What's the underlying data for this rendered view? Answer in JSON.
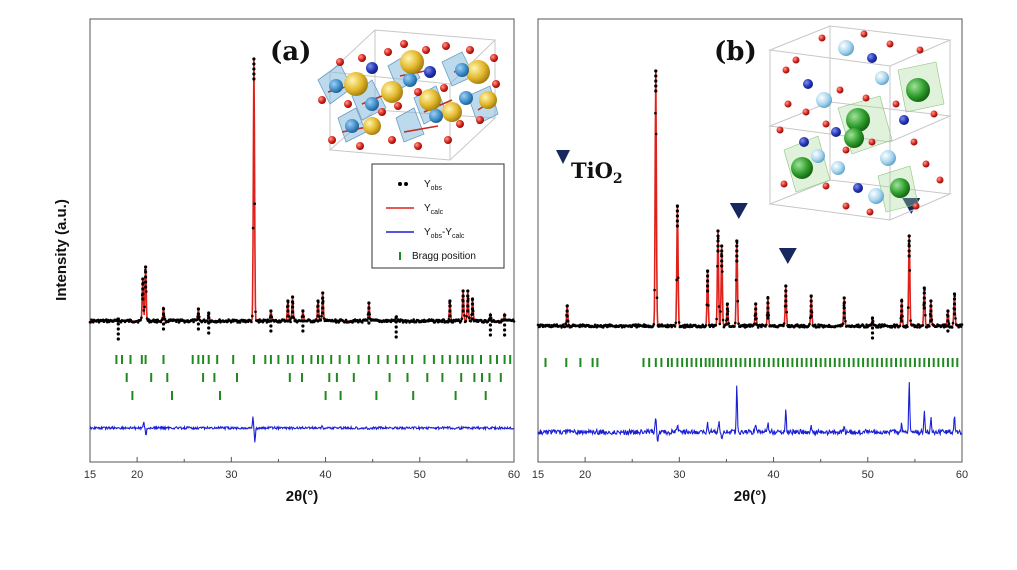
{
  "colors": {
    "observed": "#000000",
    "calculated": "#e0211b",
    "difference": "#1a1fd6",
    "bragg": "#1f8a1f",
    "marker": "#16285e",
    "axis": "#555555"
  },
  "figure": {
    "ylabel": "Intensity (a.u.)",
    "xlabel": "2θ(°)"
  },
  "legend": {
    "entries": [
      {
        "symbol": "dot",
        "label": "Y",
        "sub": "obs"
      },
      {
        "symbol": "line-red",
        "label": "Y",
        "sub": "calc"
      },
      {
        "symbol": "line-blue",
        "label": "Y",
        "sub": "obs",
        "label2": "-Y",
        "sub2": "calc"
      },
      {
        "symbol": "bar-green",
        "label": "Bragg position"
      }
    ]
  },
  "panels": [
    {
      "label": "(a)",
      "xlabel": "2θ(°)"
    },
    {
      "label": "(b)",
      "xlabel": "2θ(°)",
      "annotation": "TiO",
      "annotation_sub": "2"
    }
  ],
  "chart_data": [
    {
      "type": "line",
      "panel": "(a)",
      "xlim": [
        15,
        60
      ],
      "xticks": [
        20,
        30,
        40,
        50,
        60
      ],
      "xlabel": "2θ(°)",
      "ylabel": "Intensity (a.u.)",
      "baseline": 12,
      "peaks": [
        {
          "x": 18.0,
          "y": 2
        },
        {
          "x": 20.6,
          "y": 42
        },
        {
          "x": 20.9,
          "y": 54
        },
        {
          "x": 22.8,
          "y": 12
        },
        {
          "x": 26.5,
          "y": 12
        },
        {
          "x": 27.6,
          "y": 8
        },
        {
          "x": 32.4,
          "y": 262
        },
        {
          "x": 34.2,
          "y": 10
        },
        {
          "x": 36.0,
          "y": 20
        },
        {
          "x": 36.5,
          "y": 24
        },
        {
          "x": 37.6,
          "y": 10
        },
        {
          "x": 39.2,
          "y": 20
        },
        {
          "x": 39.7,
          "y": 28
        },
        {
          "x": 44.6,
          "y": 18
        },
        {
          "x": 47.5,
          "y": 4
        },
        {
          "x": 53.2,
          "y": 20
        },
        {
          "x": 54.6,
          "y": 30
        },
        {
          "x": 55.1,
          "y": 30
        },
        {
          "x": 55.6,
          "y": 22
        },
        {
          "x": 57.5,
          "y": 6
        },
        {
          "x": 59.0,
          "y": 6
        }
      ],
      "bragg_positions": [
        [
          17.8,
          18.4,
          19.3,
          20.5,
          20.9,
          22.8,
          25.9,
          26.5,
          27.0,
          27.6,
          28.5,
          30.2,
          32.4,
          33.6,
          34.2,
          35.0,
          36.0,
          36.5,
          37.6,
          38.5,
          39.2,
          39.7,
          40.6,
          41.5,
          42.5,
          43.5,
          44.6,
          45.6,
          46.6,
          47.5,
          48.3,
          49.2,
          50.5,
          51.5,
          52.4,
          53.2,
          54.0,
          54.6,
          55.1,
          55.6,
          56.5,
          57.5,
          58.2,
          59.0,
          59.6
        ],
        [
          18.9,
          21.5,
          23.2,
          27.0,
          28.2,
          30.6,
          36.2,
          37.5,
          40.4,
          41.2,
          43.0,
          46.8,
          48.7,
          50.8,
          52.4,
          54.4,
          55.8,
          56.6,
          57.4,
          58.6
        ],
        [
          19.5,
          23.7,
          28.8,
          40.0,
          41.6,
          45.4,
          49.3,
          53.8,
          57.0
        ]
      ],
      "difference_spikes": [
        {
          "x": 20.7,
          "y": 12
        },
        {
          "x": 20.95,
          "y": -14
        },
        {
          "x": 32.3,
          "y": 20
        },
        {
          "x": 32.5,
          "y": -26
        },
        {
          "x": 39.6,
          "y": 4
        },
        {
          "x": 44.6,
          "y": -3
        }
      ]
    },
    {
      "type": "line",
      "panel": "(b)",
      "xlim": [
        15,
        60
      ],
      "xticks": [
        20,
        30,
        40,
        50,
        60
      ],
      "xlabel": "2θ(°)",
      "baseline": 8,
      "peaks": [
        {
          "x": 18.1,
          "y": 20
        },
        {
          "x": 27.5,
          "y": 255
        },
        {
          "x": 29.8,
          "y": 120
        },
        {
          "x": 33.0,
          "y": 55
        },
        {
          "x": 34.1,
          "y": 95
        },
        {
          "x": 34.5,
          "y": 80
        },
        {
          "x": 35.1,
          "y": 22
        },
        {
          "x": 36.1,
          "y": 85
        },
        {
          "x": 38.1,
          "y": 22
        },
        {
          "x": 39.4,
          "y": 28
        },
        {
          "x": 41.3,
          "y": 40
        },
        {
          "x": 44.0,
          "y": 30
        },
        {
          "x": 47.5,
          "y": 28
        },
        {
          "x": 50.5,
          "y": 8
        },
        {
          "x": 53.6,
          "y": 25
        },
        {
          "x": 54.4,
          "y": 90
        },
        {
          "x": 56.0,
          "y": 38
        },
        {
          "x": 56.7,
          "y": 25
        },
        {
          "x": 58.5,
          "y": 15
        },
        {
          "x": 59.2,
          "y": 32
        }
      ],
      "tio2_markers": [
        36.1,
        41.3,
        54.4
      ],
      "bragg_positions": [
        [
          15.8,
          18.0,
          19.5,
          20.8,
          21.3,
          26.2,
          26.8,
          27.5,
          28.1,
          28.8,
          29.2,
          29.8,
          30.3,
          30.8,
          31.3,
          31.8,
          32.3,
          32.8,
          33.2,
          33.6,
          34.1,
          34.5,
          35.0,
          35.5,
          36.0,
          36.5,
          37.0,
          37.5,
          38.0,
          38.5,
          39.0,
          39.5,
          40.0,
          40.5,
          41.0,
          41.5,
          42.0,
          42.5,
          43.0,
          43.5,
          44.0,
          44.5,
          45.0,
          45.5,
          46.0,
          46.5,
          47.0,
          47.5,
          48.0,
          48.5,
          49.0,
          49.5,
          50.0,
          50.5,
          51.0,
          51.5,
          52.0,
          52.5,
          53.0,
          53.5,
          54.0,
          54.5,
          55.0,
          55.5,
          56.0,
          56.5,
          57.0,
          57.5,
          58.0,
          58.5,
          59.0,
          59.5
        ]
      ],
      "difference_spikes": [
        {
          "x": 27.5,
          "y": 28
        },
        {
          "x": 27.7,
          "y": -16
        },
        {
          "x": 29.8,
          "y": 14
        },
        {
          "x": 33.0,
          "y": 16
        },
        {
          "x": 34.2,
          "y": 20
        },
        {
          "x": 34.5,
          "y": -14
        },
        {
          "x": 36.1,
          "y": 85
        },
        {
          "x": 38.1,
          "y": 12
        },
        {
          "x": 39.4,
          "y": 18
        },
        {
          "x": 41.3,
          "y": 40
        },
        {
          "x": 44.0,
          "y": 10
        },
        {
          "x": 47.5,
          "y": 10
        },
        {
          "x": 53.6,
          "y": 18
        },
        {
          "x": 54.4,
          "y": 90
        },
        {
          "x": 56.0,
          "y": 36
        },
        {
          "x": 56.7,
          "y": 24
        },
        {
          "x": 59.2,
          "y": 30
        }
      ]
    }
  ]
}
